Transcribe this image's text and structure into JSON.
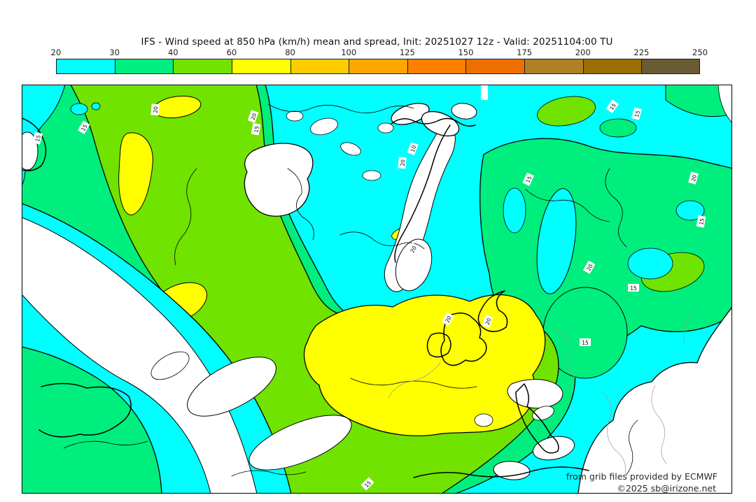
{
  "header": {
    "title": "IFS - Wind speed at 850 hPa (km/h) mean and spread, Init: 20251027 12z - Valid: 20251104:00 TU"
  },
  "colorbar": {
    "ticks": [
      "20",
      "30",
      "40",
      "60",
      "80",
      "100",
      "125",
      "150",
      "175",
      "200",
      "225",
      "250"
    ],
    "segment_colors": [
      "#00FFFF",
      "#00EE7D",
      "#70E300",
      "#FFFF00",
      "#FFCC00",
      "#FFA600",
      "#FF8000",
      "#EE6F00",
      "#B08025",
      "#9C6F04",
      "#695B33"
    ]
  },
  "map": {
    "colors": {
      "cyan": "#00FFFF",
      "green30": "#00EE7D",
      "green40": "#70E300",
      "yellow": "#FFFF00",
      "white_low": "#FFFFFF",
      "contour": "#000000",
      "border_lines": "#999999"
    },
    "contour_labels": [
      {
        "value": "15"
      },
      {
        "value": "15"
      },
      {
        "value": "20"
      },
      {
        "value": "20"
      },
      {
        "value": "15"
      },
      {
        "value": "20"
      },
      {
        "value": "10"
      },
      {
        "value": "15"
      },
      {
        "value": "15"
      },
      {
        "value": "15"
      },
      {
        "value": "20"
      },
      {
        "value": "15"
      },
      {
        "value": "20"
      },
      {
        "value": "20"
      },
      {
        "value": "20"
      },
      {
        "value": "15"
      },
      {
        "value": "20"
      },
      {
        "value": "15"
      },
      {
        "value": "15"
      }
    ],
    "credits": {
      "line1": "from grib files provided by ECMWF",
      "line2": "©2025 sb@irizone.net"
    }
  }
}
